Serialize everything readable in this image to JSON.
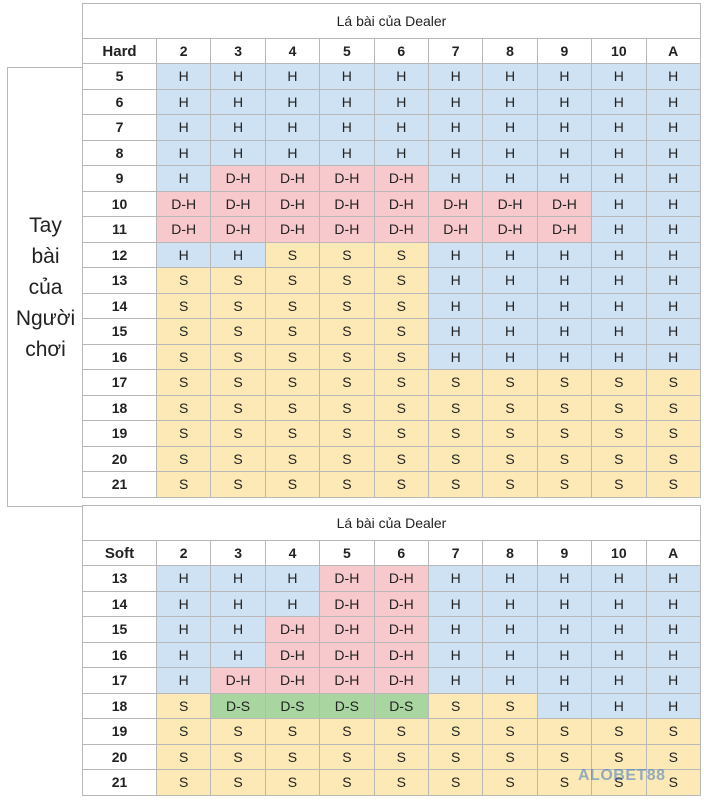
{
  "hard_table": {
    "title": "Lá bài của Dealer",
    "corner_label": "Hard",
    "dealer_cards": [
      "2",
      "3",
      "4",
      "5",
      "6",
      "7",
      "8",
      "9",
      "10",
      "A"
    ],
    "rows": [
      {
        "player": "5",
        "cells": [
          "H",
          "H",
          "H",
          "H",
          "H",
          "H",
          "H",
          "H",
          "H",
          "H"
        ]
      },
      {
        "player": "6",
        "cells": [
          "H",
          "H",
          "H",
          "H",
          "H",
          "H",
          "H",
          "H",
          "H",
          "H"
        ]
      },
      {
        "player": "7",
        "cells": [
          "H",
          "H",
          "H",
          "H",
          "H",
          "H",
          "H",
          "H",
          "H",
          "H"
        ]
      },
      {
        "player": "8",
        "cells": [
          "H",
          "H",
          "H",
          "H",
          "H",
          "H",
          "H",
          "H",
          "H",
          "H"
        ]
      },
      {
        "player": "9",
        "cells": [
          "H",
          "D-H",
          "D-H",
          "D-H",
          "D-H",
          "H",
          "H",
          "H",
          "H",
          "H"
        ]
      },
      {
        "player": "10",
        "cells": [
          "D-H",
          "D-H",
          "D-H",
          "D-H",
          "D-H",
          "D-H",
          "D-H",
          "D-H",
          "H",
          "H"
        ]
      },
      {
        "player": "11",
        "cells": [
          "D-H",
          "D-H",
          "D-H",
          "D-H",
          "D-H",
          "D-H",
          "D-H",
          "D-H",
          "H",
          "H"
        ]
      },
      {
        "player": "12",
        "cells": [
          "H",
          "H",
          "S",
          "S",
          "S",
          "H",
          "H",
          "H",
          "H",
          "H"
        ]
      },
      {
        "player": "13",
        "cells": [
          "S",
          "S",
          "S",
          "S",
          "S",
          "H",
          "H",
          "H",
          "H",
          "H"
        ]
      },
      {
        "player": "14",
        "cells": [
          "S",
          "S",
          "S",
          "S",
          "S",
          "H",
          "H",
          "H",
          "H",
          "H"
        ]
      },
      {
        "player": "15",
        "cells": [
          "S",
          "S",
          "S",
          "S",
          "S",
          "H",
          "H",
          "H",
          "H",
          "H"
        ]
      },
      {
        "player": "16",
        "cells": [
          "S",
          "S",
          "S",
          "S",
          "S",
          "H",
          "H",
          "H",
          "H",
          "H"
        ]
      },
      {
        "player": "17",
        "cells": [
          "S",
          "S",
          "S",
          "S",
          "S",
          "S",
          "S",
          "S",
          "S",
          "S"
        ]
      },
      {
        "player": "18",
        "cells": [
          "S",
          "S",
          "S",
          "S",
          "S",
          "S",
          "S",
          "S",
          "S",
          "S"
        ]
      },
      {
        "player": "19",
        "cells": [
          "S",
          "S",
          "S",
          "S",
          "S",
          "S",
          "S",
          "S",
          "S",
          "S"
        ]
      },
      {
        "player": "20",
        "cells": [
          "S",
          "S",
          "S",
          "S",
          "S",
          "S",
          "S",
          "S",
          "S",
          "S"
        ]
      },
      {
        "player": "21",
        "cells": [
          "S",
          "S",
          "S",
          "S",
          "S",
          "S",
          "S",
          "S",
          "S",
          "S"
        ]
      }
    ]
  },
  "soft_table": {
    "title": "Lá bài của Dealer",
    "corner_label": "Soft",
    "dealer_cards": [
      "2",
      "3",
      "4",
      "5",
      "6",
      "7",
      "8",
      "9",
      "10",
      "A"
    ],
    "rows": [
      {
        "player": "13",
        "cells": [
          "H",
          "H",
          "H",
          "D-H",
          "D-H",
          "H",
          "H",
          "H",
          "H",
          "H"
        ]
      },
      {
        "player": "14",
        "cells": [
          "H",
          "H",
          "H",
          "D-H",
          "D-H",
          "H",
          "H",
          "H",
          "H",
          "H"
        ]
      },
      {
        "player": "15",
        "cells": [
          "H",
          "H",
          "D-H",
          "D-H",
          "D-H",
          "H",
          "H",
          "H",
          "H",
          "H"
        ]
      },
      {
        "player": "16",
        "cells": [
          "H",
          "H",
          "D-H",
          "D-H",
          "D-H",
          "H",
          "H",
          "H",
          "H",
          "H"
        ]
      },
      {
        "player": "17",
        "cells": [
          "H",
          "D-H",
          "D-H",
          "D-H",
          "D-H",
          "H",
          "H",
          "H",
          "H",
          "H"
        ]
      },
      {
        "player": "18",
        "cells": [
          "S",
          "D-S",
          "D-S",
          "D-S",
          "D-S",
          "S",
          "S",
          "H",
          "H",
          "H"
        ]
      },
      {
        "player": "19",
        "cells": [
          "S",
          "S",
          "S",
          "S",
          "S",
          "S",
          "S",
          "S",
          "S",
          "S"
        ]
      },
      {
        "player": "20",
        "cells": [
          "S",
          "S",
          "S",
          "S",
          "S",
          "S",
          "S",
          "S",
          "S",
          "S"
        ]
      },
      {
        "player": "21",
        "cells": [
          "S",
          "S",
          "S",
          "S",
          "S",
          "S",
          "S",
          "S",
          "S",
          "S"
        ]
      }
    ]
  },
  "side_label": [
    "Tay",
    "bài",
    "của",
    "Người",
    "chơi"
  ],
  "watermark": "ALOBET88",
  "colors": {
    "H": "#cfe2f3",
    "S": "#fce9b6",
    "D-H": "#f7c8cc",
    "D-S": "#a8d5a0"
  }
}
